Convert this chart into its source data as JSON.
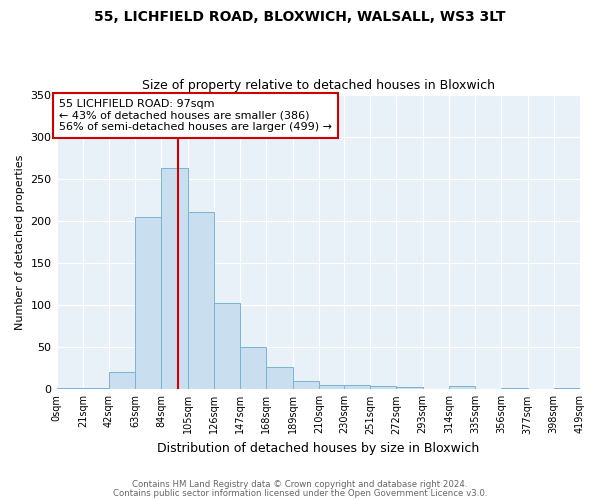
{
  "title1": "55, LICHFIELD ROAD, BLOXWICH, WALSALL, WS3 3LT",
  "title2": "Size of property relative to detached houses in Bloxwich",
  "xlabel": "Distribution of detached houses by size in Bloxwich",
  "ylabel": "Number of detached properties",
  "bin_edges": [
    0,
    21,
    42,
    63,
    84,
    105,
    126,
    147,
    168,
    189,
    210,
    230,
    251,
    272,
    293,
    314,
    335,
    356,
    377,
    398,
    419
  ],
  "bar_heights": [
    2,
    2,
    20,
    205,
    263,
    210,
    103,
    50,
    27,
    10,
    5,
    5,
    4,
    3,
    0,
    4,
    0,
    1,
    0,
    2
  ],
  "bar_color": "#c9dff0",
  "bar_edgecolor": "#7ab3d4",
  "vline_x": 97,
  "vline_color": "#cc0000",
  "annotation_title": "55 LICHFIELD ROAD: 97sqm",
  "annotation_line1": "← 43% of detached houses are smaller (386)",
  "annotation_line2": "56% of semi-detached houses are larger (499) →",
  "annotation_box_edgecolor": "#cc0000",
  "ylim": [
    0,
    350
  ],
  "yticks": [
    0,
    50,
    100,
    150,
    200,
    250,
    300,
    350
  ],
  "footer1": "Contains HM Land Registry data © Crown copyright and database right 2024.",
  "footer2": "Contains public sector information licensed under the Open Government Licence v3.0.",
  "fig_bg_color": "#ffffff",
  "plot_bg_color": "#e8f0f8"
}
